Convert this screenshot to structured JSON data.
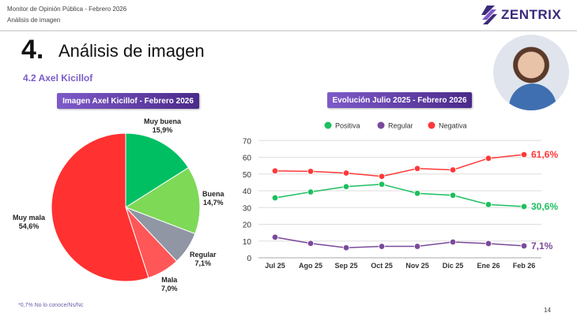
{
  "header": {
    "line1": "Monitor de Opinión Pública - Febrero 2026",
    "line2": "Análisis de imagen",
    "logo": "ZENTRIX"
  },
  "title": {
    "number": "4.",
    "text": "Análisis de imagen"
  },
  "subtitle": "4.2 Axel Kicillof",
  "footnote": "*0,7% No lo conoce/Ns/Nc",
  "page_number": "14",
  "colors": {
    "accent": "#7b5cc9",
    "positive": "#1dbf5f",
    "regular": "#7a4a9a",
    "negative": "#ff3838"
  },
  "chart_data": [
    {
      "type": "pie",
      "title": "Imagen Axel Kicillof - Febrero 2026",
      "slices": [
        {
          "label": "Muy buena",
          "value": 15.9,
          "text": "15,9%",
          "color": "#00bf63"
        },
        {
          "label": "Buena",
          "value": 14.7,
          "text": "14,7%",
          "color": "#7ed957"
        },
        {
          "label": "Regular",
          "value": 7.1,
          "text": "7,1%",
          "color": "#9096a4"
        },
        {
          "label": "Mala",
          "value": 7.0,
          "text": "7,0%",
          "color": "#ff5757"
        },
        {
          "label": "Muy mala",
          "value": 54.6,
          "text": "54,6%",
          "color": "#ff3131"
        }
      ]
    },
    {
      "type": "line",
      "title": "Evolución Julio 2025 - Febrero 2026",
      "legend": "top",
      "grid": true,
      "categories": [
        "Jul 25",
        "Ago 25",
        "Sep 25",
        "Oct 25",
        "Nov 25",
        "Dic 25",
        "Ene 26",
        "Feb 26"
      ],
      "ylim": [
        0,
        70
      ],
      "yticks": [
        0,
        10,
        20,
        30,
        40,
        50,
        60,
        70
      ],
      "series": [
        {
          "name": "Positiva",
          "color": "#1dbf5f",
          "values": [
            35.8,
            39.3,
            42.5,
            43.9,
            38.5,
            37.3,
            31.8,
            30.6
          ],
          "end_label": "30,6%"
        },
        {
          "name": "Regular",
          "color": "#7a4a9a",
          "values": [
            12.3,
            8.6,
            6.0,
            6.8,
            6.8,
            9.4,
            8.5,
            7.1
          ],
          "end_label": "7,1%"
        },
        {
          "name": "Negativa",
          "color": "#ff3838",
          "values": [
            51.9,
            51.6,
            50.6,
            48.6,
            53.3,
            52.5,
            59.4,
            61.6
          ],
          "end_label": "61,6%"
        }
      ]
    }
  ]
}
